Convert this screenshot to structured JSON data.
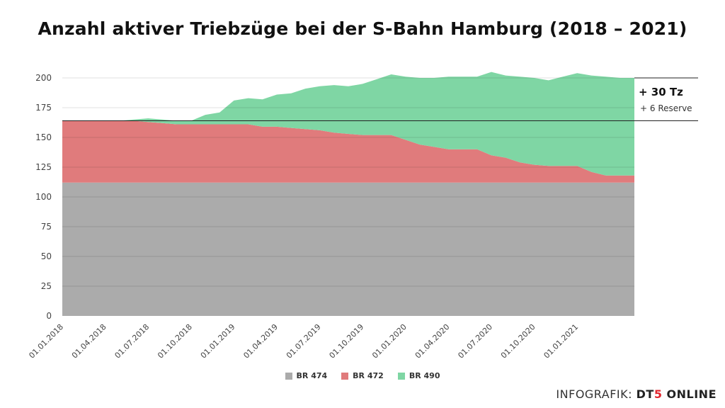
{
  "chart_data": {
    "type": "area",
    "title": "Anzahl aktiver Triebzüge bei der S-Bahn Hamburg (2018 – 2021)",
    "ylim": [
      0,
      200
    ],
    "yticks": [
      0,
      25,
      50,
      75,
      100,
      125,
      150,
      175,
      200
    ],
    "xlabels": [
      "01.01.2018",
      "01.04.2018",
      "01.07.2018",
      "01.10.2018",
      "01.01.2019",
      "01.04.2019",
      "01.07.2019",
      "01.10.2019",
      "01.01.2020",
      "01.04.2020",
      "01.07.2020",
      "01.10.2020",
      "01.01.2021"
    ],
    "x_start": "01.01.2018",
    "x_end": "01.05.2021",
    "stacked": true,
    "grid": true,
    "legend_position": "bottom",
    "series": [
      {
        "name": "BR 474",
        "color": "#ababab",
        "values": [
          112,
          112,
          112,
          112,
          112,
          112,
          112,
          112,
          112,
          112,
          112,
          112,
          112,
          112,
          112,
          112,
          112,
          112,
          112,
          112,
          112,
          112,
          112,
          112,
          112,
          112,
          112,
          112,
          112,
          112,
          112,
          112,
          112,
          112,
          112,
          112,
          112,
          112,
          112,
          112,
          112
        ]
      },
      {
        "name": "BR 472",
        "color": "#e07b7c",
        "values": [
          52,
          52,
          52,
          52,
          52,
          52,
          51,
          50,
          49,
          49,
          49,
          49,
          49,
          49,
          47,
          47,
          46,
          45,
          44,
          42,
          41,
          40,
          40,
          40,
          36,
          32,
          30,
          28,
          28,
          28,
          23,
          21,
          17,
          15,
          14,
          14,
          14,
          9,
          6,
          6,
          6
        ]
      },
      {
        "name": "BR 490",
        "color": "#7fd6a4",
        "values": [
          0,
          0,
          0,
          0,
          0,
          1,
          3,
          3,
          3,
          3,
          8,
          10,
          20,
          22,
          23,
          27,
          29,
          34,
          37,
          40,
          40,
          43,
          47,
          51,
          53,
          56,
          58,
          61,
          61,
          61,
          70,
          69,
          72,
          73,
          72,
          75,
          78,
          81,
          83,
          82,
          82
        ]
      }
    ],
    "annotation": {
      "line_value": 164,
      "top_value": 200,
      "main": "+ 30 Tz",
      "sub": "+ 6 Reserve"
    }
  },
  "legend": {
    "items": [
      "BR 474",
      "BR 472",
      "BR 490"
    ]
  },
  "credit": {
    "prefix": "INFOGRAFIK:",
    "brand_a": "DT",
    "brand_b": "5",
    "brand_c": " ONLINE"
  }
}
